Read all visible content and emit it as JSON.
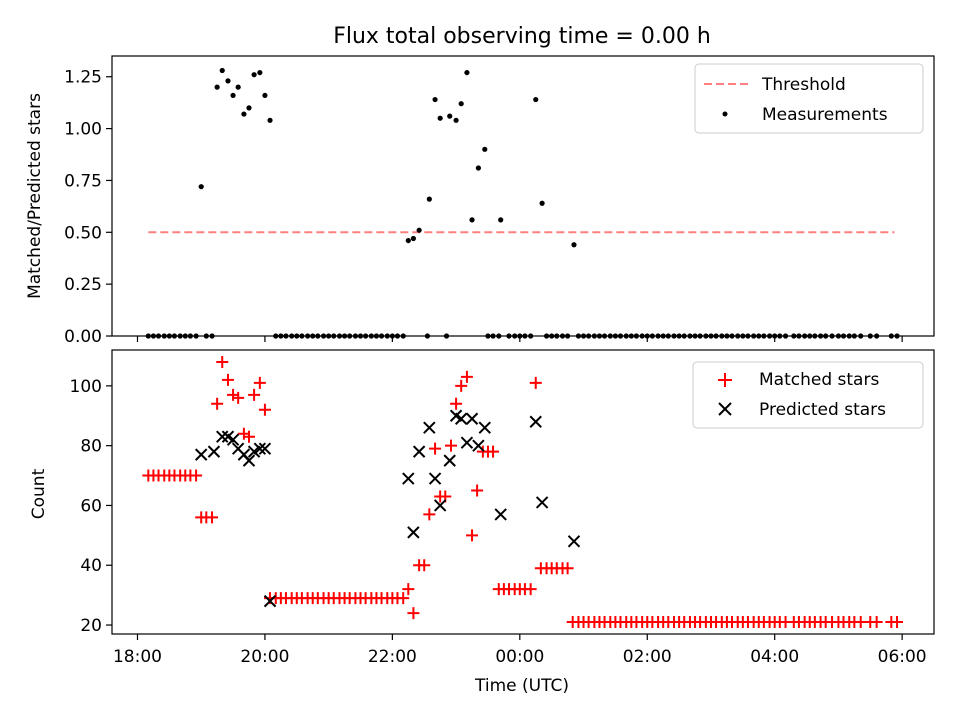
{
  "chart_data": [
    {
      "type": "scatter",
      "title": "Flux total observing time = 0.00 h",
      "xlabel": "",
      "ylabel": "Matched/Predicted stars",
      "ylim": [
        0,
        1.35
      ],
      "yticks": [
        "0.00",
        "0.25",
        "0.50",
        "0.75",
        "1.00",
        "1.25"
      ],
      "ytick_values": [
        0,
        0.25,
        0.5,
        0.75,
        1.0,
        1.25
      ],
      "legend_location": "top-right",
      "threshold": {
        "name": "Threshold",
        "value": 0.5,
        "x_start": 18.17,
        "x_end": 29.88,
        "color": "#ff7f7f"
      },
      "series": [
        {
          "name": "Measurements",
          "color": "#000000",
          "points": [
            [
              19.0,
              0.72
            ],
            [
              19.25,
              1.2
            ],
            [
              19.33,
              1.28
            ],
            [
              19.42,
              1.23
            ],
            [
              19.5,
              1.16
            ],
            [
              19.58,
              1.2
            ],
            [
              19.67,
              1.07
            ],
            [
              19.75,
              1.1
            ],
            [
              19.83,
              1.26
            ],
            [
              19.92,
              1.27
            ],
            [
              20.0,
              1.16
            ],
            [
              20.08,
              1.04
            ],
            [
              22.25,
              0.46
            ],
            [
              22.33,
              0.47
            ],
            [
              22.42,
              0.51
            ],
            [
              22.58,
              0.66
            ],
            [
              22.67,
              1.14
            ],
            [
              22.75,
              1.05
            ],
            [
              22.9,
              1.06
            ],
            [
              23.0,
              1.04
            ],
            [
              23.08,
              1.12
            ],
            [
              23.17,
              1.27
            ],
            [
              23.25,
              0.56
            ],
            [
              23.35,
              0.81
            ],
            [
              23.45,
              0.9
            ],
            [
              23.7,
              0.56
            ],
            [
              24.25,
              1.14
            ],
            [
              24.35,
              0.64
            ],
            [
              24.85,
              0.44
            ]
          ],
          "zero_xs": [
            18.17,
            18.25,
            18.33,
            18.42,
            18.5,
            18.58,
            18.67,
            18.75,
            18.83,
            18.92,
            19.08,
            19.17,
            20.17,
            20.25,
            20.33,
            20.42,
            20.5,
            20.58,
            20.67,
            20.75,
            20.83,
            20.92,
            21.0,
            21.08,
            21.17,
            21.25,
            21.33,
            21.42,
            21.5,
            21.58,
            21.67,
            21.75,
            21.83,
            21.92,
            22.0,
            22.08,
            22.17,
            22.55,
            22.85,
            23.5,
            23.58,
            23.67,
            23.83,
            23.92,
            24.0,
            24.08,
            24.17,
            24.42,
            24.5,
            24.58,
            24.67,
            24.75,
            24.92,
            25.0,
            25.08,
            25.17,
            25.25,
            25.33,
            25.42,
            25.5,
            25.58,
            25.67,
            25.75,
            25.83,
            25.92,
            26.0,
            26.08,
            26.17,
            26.25,
            26.33,
            26.42,
            26.5,
            26.58,
            26.67,
            26.75,
            26.83,
            26.92,
            27.0,
            27.08,
            27.17,
            27.25,
            27.33,
            27.42,
            27.5,
            27.58,
            27.67,
            27.75,
            27.83,
            27.92,
            28.0,
            28.08,
            28.17,
            28.3,
            28.38,
            28.47,
            28.55,
            28.63,
            28.72,
            28.8,
            28.9,
            29.0,
            29.08,
            29.17,
            29.25,
            29.35,
            29.5,
            29.6,
            29.83,
            29.92
          ]
        }
      ]
    },
    {
      "type": "scatter",
      "title": "",
      "xlabel": "Time (UTC)",
      "ylabel": "Count",
      "ylim": [
        17,
        112
      ],
      "xlim": [
        17.6,
        30.5
      ],
      "yticks": [
        "20",
        "40",
        "60",
        "80",
        "100"
      ],
      "ytick_values": [
        20,
        40,
        60,
        80,
        100
      ],
      "xticks": [
        "18:00",
        "20:00",
        "22:00",
        "00:00",
        "02:00",
        "04:00",
        "06:00"
      ],
      "xtick_values": [
        18,
        20,
        22,
        24,
        26,
        28,
        30
      ],
      "legend_location": "top-right",
      "series": [
        {
          "name": "Matched stars",
          "marker": "plus",
          "color": "#ff0000",
          "points": [
            [
              18.17,
              70
            ],
            [
              18.25,
              70
            ],
            [
              18.33,
              70
            ],
            [
              18.42,
              70
            ],
            [
              18.5,
              70
            ],
            [
              18.58,
              70
            ],
            [
              18.67,
              70
            ],
            [
              18.75,
              70
            ],
            [
              18.83,
              70
            ],
            [
              18.92,
              70
            ],
            [
              19.0,
              56
            ],
            [
              19.08,
              56
            ],
            [
              19.17,
              56
            ],
            [
              19.25,
              94
            ],
            [
              19.33,
              108
            ],
            [
              19.42,
              102
            ],
            [
              19.5,
              97
            ],
            [
              19.58,
              96
            ],
            [
              19.67,
              84
            ],
            [
              19.75,
              83
            ],
            [
              19.83,
              97
            ],
            [
              19.92,
              101
            ],
            [
              20.0,
              92
            ],
            [
              20.08,
              29
            ],
            [
              20.17,
              29
            ],
            [
              20.25,
              29
            ],
            [
              20.33,
              29
            ],
            [
              20.42,
              29
            ],
            [
              20.5,
              29
            ],
            [
              20.58,
              29
            ],
            [
              20.67,
              29
            ],
            [
              20.75,
              29
            ],
            [
              20.83,
              29
            ],
            [
              20.92,
              29
            ],
            [
              21.0,
              29
            ],
            [
              21.08,
              29
            ],
            [
              21.17,
              29
            ],
            [
              21.25,
              29
            ],
            [
              21.33,
              29
            ],
            [
              21.42,
              29
            ],
            [
              21.5,
              29
            ],
            [
              21.58,
              29
            ],
            [
              21.67,
              29
            ],
            [
              21.75,
              29
            ],
            [
              21.83,
              29
            ],
            [
              21.92,
              29
            ],
            [
              22.0,
              29
            ],
            [
              22.08,
              29
            ],
            [
              22.17,
              29
            ],
            [
              22.25,
              32
            ],
            [
              22.33,
              24
            ],
            [
              22.42,
              40
            ],
            [
              22.5,
              40
            ],
            [
              22.58,
              57
            ],
            [
              22.67,
              79
            ],
            [
              22.75,
              63
            ],
            [
              22.83,
              63
            ],
            [
              22.92,
              80
            ],
            [
              23.0,
              94
            ],
            [
              23.08,
              100
            ],
            [
              23.17,
              103
            ],
            [
              23.25,
              50
            ],
            [
              23.33,
              65
            ],
            [
              23.42,
              78
            ],
            [
              23.5,
              78
            ],
            [
              23.58,
              78
            ],
            [
              23.67,
              32
            ],
            [
              23.75,
              32
            ],
            [
              23.83,
              32
            ],
            [
              23.92,
              32
            ],
            [
              24.0,
              32
            ],
            [
              24.08,
              32
            ],
            [
              24.17,
              32
            ],
            [
              24.25,
              101
            ],
            [
              24.33,
              39
            ],
            [
              24.42,
              39
            ],
            [
              24.5,
              39
            ],
            [
              24.58,
              39
            ],
            [
              24.67,
              39
            ],
            [
              24.75,
              39
            ],
            [
              24.83,
              21
            ],
            [
              24.92,
              21
            ],
            [
              25.0,
              21
            ],
            [
              25.08,
              21
            ],
            [
              25.17,
              21
            ],
            [
              25.25,
              21
            ],
            [
              25.33,
              21
            ],
            [
              25.42,
              21
            ],
            [
              25.5,
              21
            ],
            [
              25.58,
              21
            ],
            [
              25.67,
              21
            ],
            [
              25.75,
              21
            ],
            [
              25.83,
              21
            ],
            [
              25.92,
              21
            ],
            [
              26.0,
              21
            ],
            [
              26.08,
              21
            ],
            [
              26.17,
              21
            ],
            [
              26.25,
              21
            ],
            [
              26.33,
              21
            ],
            [
              26.42,
              21
            ],
            [
              26.5,
              21
            ],
            [
              26.58,
              21
            ],
            [
              26.67,
              21
            ],
            [
              26.75,
              21
            ],
            [
              26.83,
              21
            ],
            [
              26.92,
              21
            ],
            [
              27.0,
              21
            ],
            [
              27.08,
              21
            ],
            [
              27.17,
              21
            ],
            [
              27.25,
              21
            ],
            [
              27.33,
              21
            ],
            [
              27.42,
              21
            ],
            [
              27.5,
              21
            ],
            [
              27.58,
              21
            ],
            [
              27.67,
              21
            ],
            [
              27.75,
              21
            ],
            [
              27.83,
              21
            ],
            [
              27.92,
              21
            ],
            [
              28.0,
              21
            ],
            [
              28.08,
              21
            ],
            [
              28.17,
              21
            ],
            [
              28.3,
              21
            ],
            [
              28.38,
              21
            ],
            [
              28.47,
              21
            ],
            [
              28.55,
              21
            ],
            [
              28.63,
              21
            ],
            [
              28.72,
              21
            ],
            [
              28.8,
              21
            ],
            [
              28.9,
              21
            ],
            [
              29.0,
              21
            ],
            [
              29.08,
              21
            ],
            [
              29.17,
              21
            ],
            [
              29.25,
              21
            ],
            [
              29.35,
              21
            ],
            [
              29.5,
              21
            ],
            [
              29.6,
              21
            ],
            [
              29.83,
              21
            ],
            [
              29.92,
              21
            ]
          ]
        },
        {
          "name": "Predicted stars",
          "marker": "x",
          "color": "#000000",
          "points": [
            [
              19.0,
              77
            ],
            [
              19.2,
              78
            ],
            [
              19.33,
              83
            ],
            [
              19.42,
              83
            ],
            [
              19.5,
              82
            ],
            [
              19.58,
              79
            ],
            [
              19.67,
              77
            ],
            [
              19.75,
              75
            ],
            [
              19.83,
              78
            ],
            [
              19.92,
              79
            ],
            [
              20.0,
              79
            ],
            [
              20.08,
              28
            ],
            [
              22.25,
              69
            ],
            [
              22.33,
              51
            ],
            [
              22.42,
              78
            ],
            [
              22.58,
              86
            ],
            [
              22.67,
              69
            ],
            [
              22.75,
              60
            ],
            [
              22.9,
              75
            ],
            [
              23.0,
              90
            ],
            [
              23.08,
              89
            ],
            [
              23.17,
              81
            ],
            [
              23.25,
              89
            ],
            [
              23.35,
              80
            ],
            [
              23.45,
              86
            ],
            [
              23.7,
              57
            ],
            [
              24.25,
              88
            ],
            [
              24.35,
              61
            ],
            [
              24.85,
              48
            ]
          ]
        }
      ]
    }
  ]
}
